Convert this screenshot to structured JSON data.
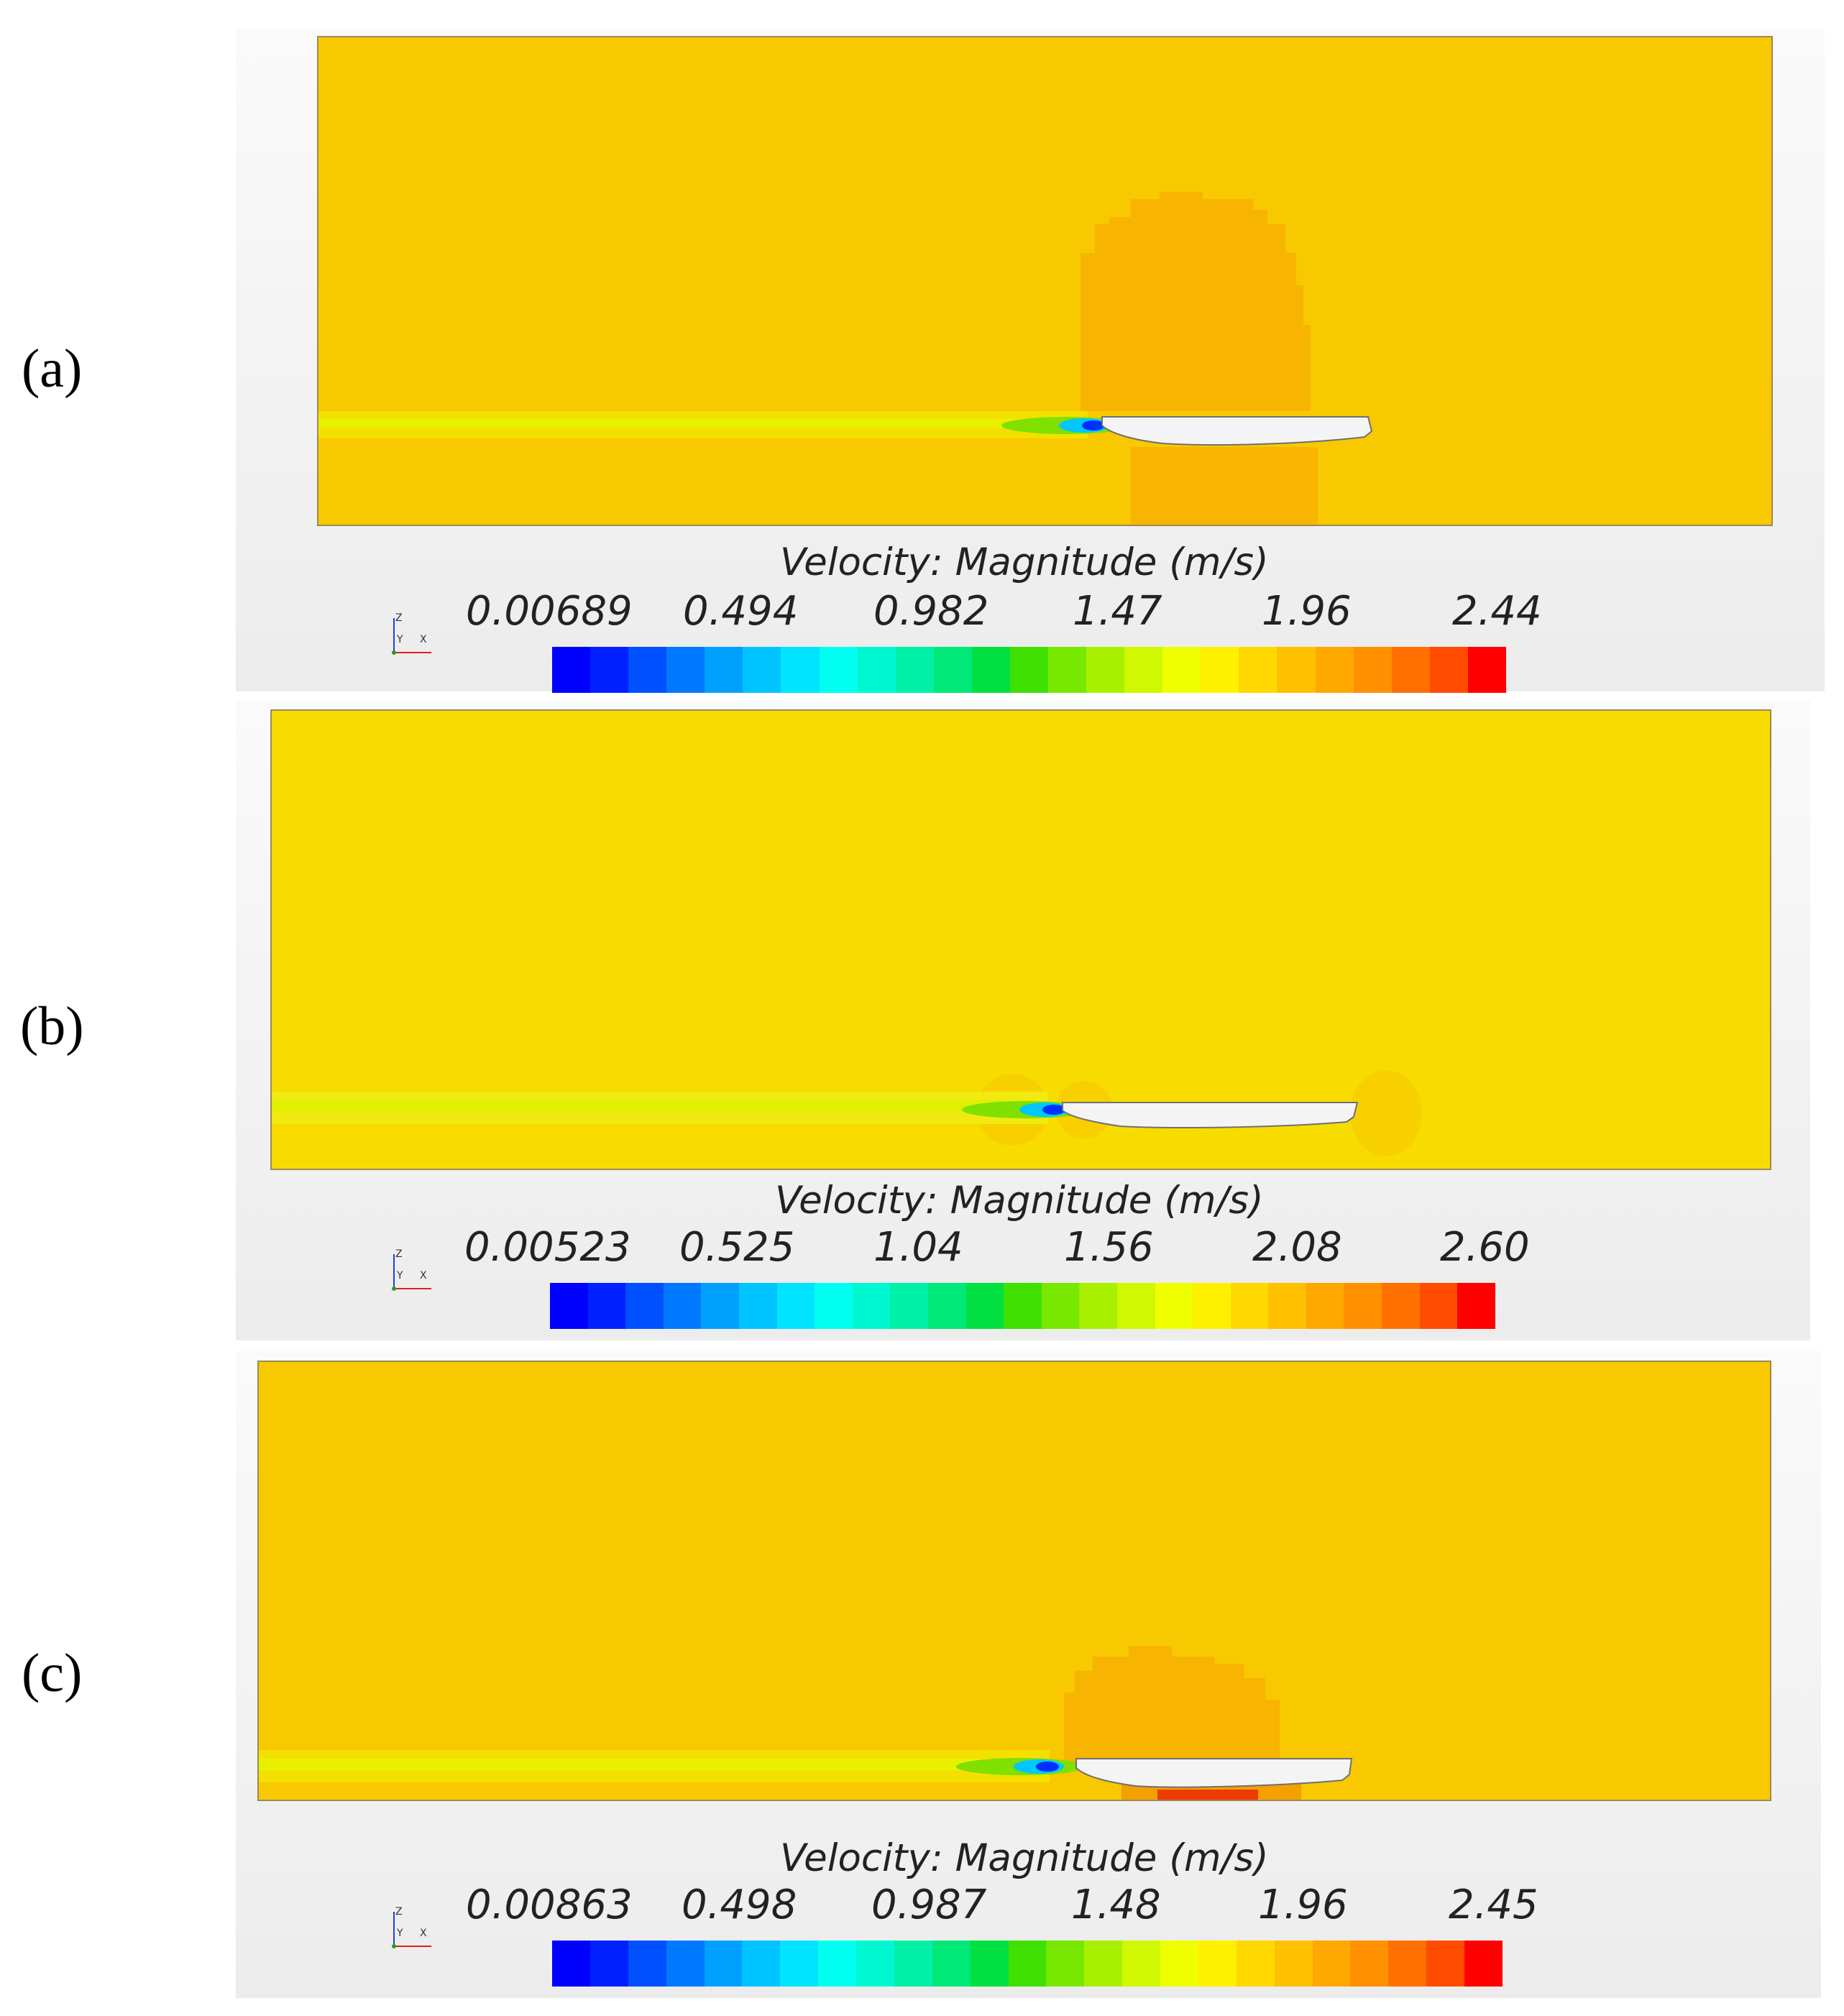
{
  "panels": [
    {
      "label": "(a)",
      "legend_title": "Velocity: Magnitude (m/s)",
      "ticks": [
        "0.00689",
        "0.494",
        "0.982",
        "1.47",
        "1.96",
        "2.44"
      ],
      "field_color": "#f8c800",
      "wake_color": "#f4e000",
      "bulge_color": "#f7b400"
    },
    {
      "label": "(b)",
      "legend_title": "Velocity: Magnitude (m/s)",
      "ticks": [
        "0.00523",
        "0.525",
        "1.04",
        "1.56",
        "2.08",
        "2.60"
      ],
      "field_color": "#f8dc00",
      "wake_color": "#f0ea10",
      "bulge_color": "#f8d000"
    },
    {
      "label": "(c)",
      "legend_title": "Velocity: Magnitude (m/s)",
      "ticks": [
        "0.00863",
        "0.498",
        "0.987",
        "1.48",
        "1.96",
        "2.45"
      ],
      "field_color": "#f8c800",
      "wake_color": "#f4e000",
      "bulge_color": "#f7b400"
    }
  ],
  "axis_triad": {
    "z": "Z",
    "y": "Y",
    "x": "X"
  },
  "colormap": [
    "#0000ff",
    "#0020ff",
    "#0050ff",
    "#0078ff",
    "#00a0ff",
    "#00c4ff",
    "#00e4ff",
    "#00fff0",
    "#00f8d0",
    "#00f0a8",
    "#00e878",
    "#00e040",
    "#40e000",
    "#78e800",
    "#a8f000",
    "#d0f800",
    "#f0ff00",
    "#fff000",
    "#ffd800",
    "#ffc000",
    "#ffa800",
    "#ff9000",
    "#ff7000",
    "#ff4c00",
    "#ff0000"
  ]
}
